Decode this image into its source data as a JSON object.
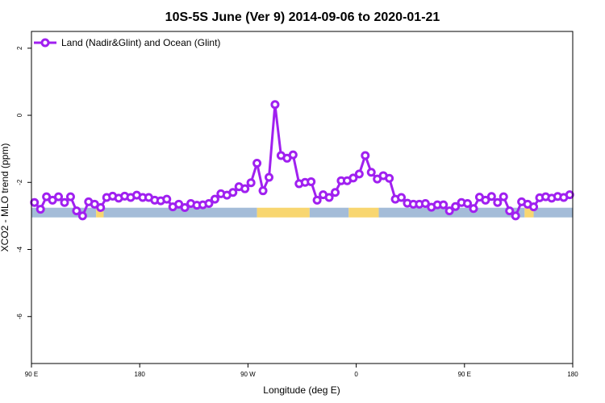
{
  "chart_data": {
    "type": "line",
    "title": "10S-5S June (Ver 9)   2014-09-06 to 2020-01-21",
    "xlabel": "Longitude (deg E)",
    "ylabel": "XCO2 - MLO trend (ppm)",
    "xlim": [
      90,
      450
    ],
    "ylim": [
      -7.4,
      2.5
    ],
    "x_ticks": [
      {
        "value": 90,
        "label": "90 E"
      },
      {
        "value": 162,
        "label": "180"
      },
      {
        "value": 234,
        "label": "90 W"
      },
      {
        "value": 306,
        "label": "0"
      },
      {
        "value": 378,
        "label": "90 E"
      },
      {
        "value": 450,
        "label": "180"
      }
    ],
    "y_ticks": [
      2,
      0,
      -2,
      -4,
      -6
    ],
    "grid": false,
    "legend": {
      "placement": "top-left"
    },
    "series": [
      {
        "name": "Land (Nadir&Glint) and Ocean (Glint)",
        "color": "#a020f0",
        "x": [
          92,
          96,
          100,
          104,
          108,
          112,
          116,
          120,
          124,
          128,
          132,
          136,
          140,
          144,
          148,
          152,
          156,
          160,
          164,
          168,
          172,
          176,
          180,
          184,
          188,
          192,
          196,
          200,
          204,
          208,
          212,
          216,
          220,
          224,
          228,
          232,
          236,
          240,
          244,
          248,
          252,
          256,
          260,
          264,
          268,
          272,
          276,
          280,
          284,
          288,
          292,
          296,
          300,
          304,
          308,
          312,
          316,
          320,
          324,
          328,
          332,
          336,
          340,
          344,
          348,
          352,
          356,
          360,
          364,
          368,
          372,
          376,
          380,
          384,
          388,
          392,
          396,
          400,
          404,
          408,
          412,
          416,
          420,
          424,
          428,
          432,
          436,
          440,
          444,
          448
        ],
        "y": [
          -2.6,
          -2.8,
          -2.43,
          -2.53,
          -2.43,
          -2.6,
          -2.43,
          -2.85,
          -3.0,
          -2.58,
          -2.65,
          -2.75,
          -2.45,
          -2.41,
          -2.47,
          -2.41,
          -2.45,
          -2.38,
          -2.45,
          -2.45,
          -2.53,
          -2.55,
          -2.5,
          -2.73,
          -2.65,
          -2.75,
          -2.63,
          -2.68,
          -2.67,
          -2.63,
          -2.5,
          -2.34,
          -2.38,
          -2.3,
          -2.13,
          -2.19,
          -2.01,
          -1.43,
          -2.25,
          -1.85,
          0.32,
          -1.2,
          -1.28,
          -1.18,
          -2.04,
          -2.0,
          -1.98,
          -2.53,
          -2.37,
          -2.45,
          -2.3,
          -1.95,
          -1.95,
          -1.87,
          -1.75,
          -1.2,
          -1.7,
          -1.9,
          -1.8,
          -1.88,
          -2.5,
          -2.45,
          -2.62,
          -2.65,
          -2.65,
          -2.63,
          -2.74,
          -2.67,
          -2.67,
          -2.85,
          -2.72,
          -2.6,
          -2.63,
          -2.78,
          -2.44,
          -2.53,
          -2.42,
          -2.6,
          -2.43,
          -2.85,
          -3.0,
          -2.58,
          -2.65,
          -2.73,
          -2.46,
          -2.43,
          -2.47,
          -2.42,
          -2.45,
          -2.37
        ]
      }
    ],
    "surface_bar": {
      "y": -2.9,
      "segments": [
        {
          "from": 90,
          "to": 133,
          "kind": "ocean"
        },
        {
          "from": 133,
          "to": 138,
          "kind": "land"
        },
        {
          "from": 138,
          "to": 240,
          "kind": "ocean"
        },
        {
          "from": 240,
          "to": 275,
          "kind": "land"
        },
        {
          "from": 275,
          "to": 301,
          "kind": "ocean"
        },
        {
          "from": 301,
          "to": 321,
          "kind": "land"
        },
        {
          "from": 321,
          "to": 418,
          "kind": "ocean"
        },
        {
          "from": 418,
          "to": 424,
          "kind": "land"
        },
        {
          "from": 424,
          "to": 450,
          "kind": "ocean"
        }
      ],
      "colors": {
        "ocean": "#a4bcd8",
        "land": "#f8d670"
      }
    }
  }
}
